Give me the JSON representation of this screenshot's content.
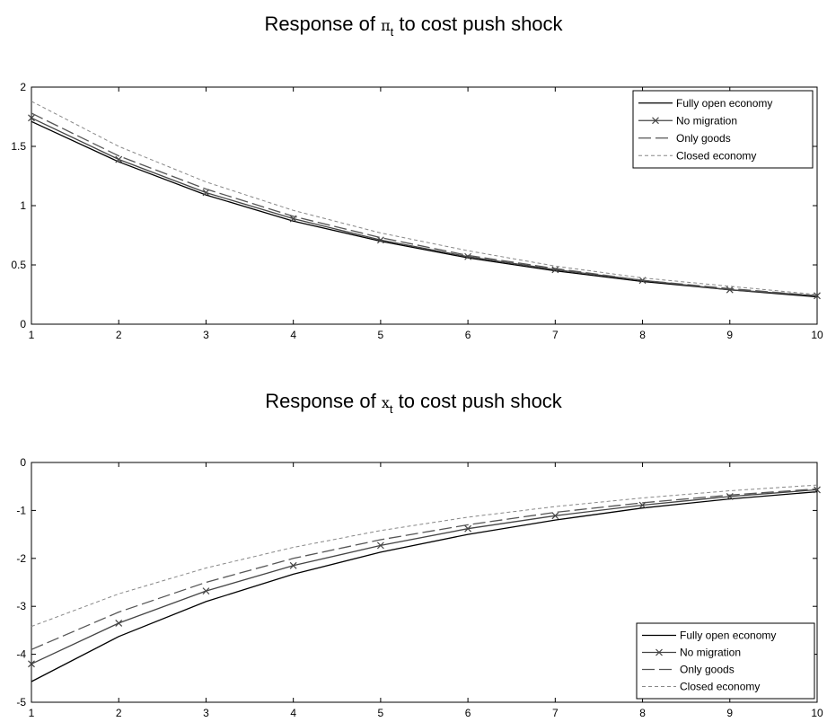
{
  "chart_data": [
    {
      "type": "line",
      "title_prefix": "Response of ",
      "title_symbol": "π",
      "title_subscript": "t",
      "title_suffix": " to cost push shock",
      "x": [
        1,
        2,
        3,
        4,
        5,
        6,
        7,
        8,
        9,
        10
      ],
      "xlim": [
        1,
        10
      ],
      "ylim": [
        0,
        2
      ],
      "xticks": [
        "1",
        "2",
        "3",
        "4",
        "5",
        "6",
        "7",
        "8",
        "9",
        "10"
      ],
      "yticks": [
        "0",
        "0.5",
        "1",
        "1.5",
        "2"
      ],
      "ytick_values": [
        0,
        0.5,
        1,
        1.5,
        2
      ],
      "grid": false,
      "legend_position": "top-right",
      "series": [
        {
          "name": "Fully open economy",
          "style": "solid",
          "color": "#000000",
          "values": [
            1.71,
            1.37,
            1.09,
            0.87,
            0.7,
            0.56,
            0.45,
            0.36,
            0.29,
            0.23
          ]
        },
        {
          "name": "No migration",
          "style": "cross",
          "color": "#444444",
          "values": [
            1.74,
            1.39,
            1.11,
            0.89,
            0.71,
            0.57,
            0.46,
            0.37,
            0.29,
            0.24
          ]
        },
        {
          "name": "Only goods",
          "style": "longdash",
          "color": "#555555",
          "values": [
            1.78,
            1.42,
            1.14,
            0.91,
            0.73,
            0.58,
            0.47,
            0.37,
            0.3,
            0.24
          ]
        },
        {
          "name": "Closed economy",
          "style": "dotted",
          "color": "#888888",
          "values": [
            1.88,
            1.5,
            1.2,
            0.96,
            0.77,
            0.62,
            0.49,
            0.39,
            0.32,
            0.25
          ]
        }
      ]
    },
    {
      "type": "line",
      "title_prefix": "Response of ",
      "title_symbol": "x",
      "title_subscript": "t",
      "title_suffix": " to cost push shock",
      "x": [
        1,
        2,
        3,
        4,
        5,
        6,
        7,
        8,
        9,
        10
      ],
      "xlim": [
        1,
        10
      ],
      "ylim": [
        -5,
        0
      ],
      "xticks": [
        "1",
        "2",
        "3",
        "4",
        "5",
        "6",
        "7",
        "8",
        "9",
        "10"
      ],
      "yticks": [
        "0",
        "-1",
        "-2",
        "-3",
        "-4",
        "-5"
      ],
      "ytick_values": [
        0,
        -1,
        -2,
        -3,
        -4,
        -5
      ],
      "grid": false,
      "legend_position": "bottom-right",
      "series": [
        {
          "name": "Fully open economy",
          "style": "solid",
          "color": "#000000",
          "values": [
            -4.57,
            -3.63,
            -2.9,
            -2.33,
            -1.87,
            -1.5,
            -1.2,
            -0.95,
            -0.76,
            -0.61
          ]
        },
        {
          "name": "No migration",
          "style": "cross",
          "color": "#444444",
          "values": [
            -4.2,
            -3.35,
            -2.68,
            -2.15,
            -1.73,
            -1.38,
            -1.11,
            -0.89,
            -0.71,
            -0.57
          ]
        },
        {
          "name": "Only goods",
          "style": "longdash",
          "color": "#555555",
          "values": [
            -3.9,
            -3.12,
            -2.5,
            -2.0,
            -1.61,
            -1.3,
            -1.04,
            -0.84,
            -0.68,
            -0.55
          ]
        },
        {
          "name": "Closed economy",
          "style": "dotted",
          "color": "#888888",
          "values": [
            -3.42,
            -2.74,
            -2.2,
            -1.77,
            -1.42,
            -1.14,
            -0.92,
            -0.74,
            -0.59,
            -0.47
          ]
        }
      ]
    }
  ]
}
